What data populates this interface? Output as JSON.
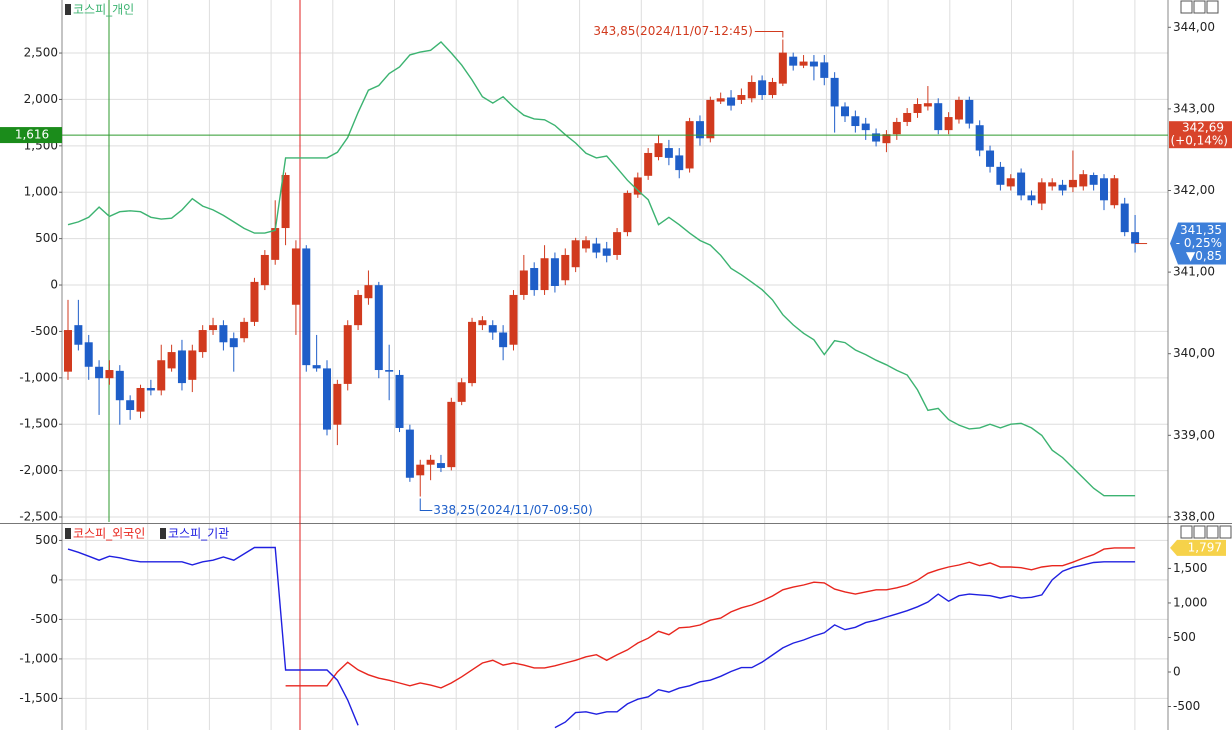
{
  "chart_data": [
    {
      "type": "candlestick",
      "series": [
        {
          "name": "코스피_개인",
          "color": "#3cb371",
          "values": [
            650,
            680,
            730,
            840,
            740,
            790,
            800,
            790,
            730,
            710,
            720,
            810,
            930,
            850,
            810,
            750,
            680,
            610,
            560,
            560,
            590,
            1370,
            1370,
            1370,
            1370,
            1370,
            1430,
            1590,
            1860,
            2100,
            2150,
            2280,
            2350,
            2480,
            2510,
            2530,
            2620,
            2500,
            2370,
            2210,
            2030,
            1960,
            2030,
            1920,
            1830,
            1790,
            1780,
            1720,
            1620,
            1530,
            1420,
            1370,
            1390,
            1260,
            1130,
            1020,
            920,
            650,
            730,
            650,
            560,
            480,
            430,
            320,
            180,
            110,
            30,
            -50,
            -160,
            -320,
            -430,
            -520,
            -590,
            -750,
            -600,
            -620,
            -700,
            -750,
            -810,
            -860,
            -920,
            -970,
            -1130,
            -1350,
            -1330,
            -1450,
            -1510,
            -1550,
            -1540,
            -1500,
            -1540,
            -1500,
            -1490,
            -1540,
            -1620,
            -1780,
            -1860,
            -1970,
            -2080,
            -2190,
            -2270,
            -2270,
            -2270,
            -2270
          ]
        }
      ],
      "candles": {
        "axis": "y2",
        "up_color": "#d13a1e",
        "down_color": "#1e5ec8",
        "open": [
          339.78,
          340.35,
          340.14,
          339.84,
          339.7,
          339.79,
          339.43,
          339.29,
          339.58,
          339.55,
          339.82,
          340.04,
          339.68,
          340.02,
          340.29,
          340.35,
          340.19,
          340.19,
          340.39,
          340.84,
          341.15,
          341.54,
          340.6,
          341.29,
          339.86,
          339.82,
          339.13,
          339.63,
          340.35,
          340.68,
          340.84,
          339.8,
          339.74,
          339.07,
          338.51,
          338.64,
          338.66,
          338.61,
          339.41,
          339.64,
          340.35,
          340.35,
          340.26,
          340.11,
          340.72,
          341.05,
          340.78,
          341.17,
          340.9,
          341.06,
          341.29,
          341.35,
          341.29,
          341.21,
          341.49,
          341.95,
          342.18,
          342.41,
          342.52,
          342.43,
          342.27,
          342.85,
          342.64,
          343.09,
          343.14,
          343.11,
          343.13,
          343.35,
          343.17,
          343.31,
          343.64,
          343.53,
          343.58,
          343.57,
          343.38,
          343.03,
          342.91,
          342.82,
          342.7,
          342.58,
          342.69,
          342.84,
          342.95,
          343.03,
          343.07,
          342.74,
          342.87,
          343.11,
          342.8,
          342.49,
          342.29,
          342.05,
          342.22,
          341.94,
          341.84,
          342.05,
          342.07,
          342.04,
          342.05,
          342.19,
          342.15,
          341.82,
          341.84,
          341.49
        ],
        "high": [
          340.66,
          340.66,
          340.23,
          339.92,
          339.92,
          339.86,
          339.49,
          339.62,
          339.68,
          340.11,
          340.11,
          340.17,
          340.11,
          340.35,
          340.44,
          340.41,
          340.26,
          340.44,
          340.93,
          341.27,
          341.88,
          342.22,
          341.39,
          341.33,
          340.23,
          339.92,
          339.68,
          340.41,
          340.78,
          341.02,
          340.88,
          340.11,
          339.8,
          339.13,
          338.7,
          338.76,
          338.76,
          339.46,
          339.7,
          340.44,
          340.46,
          340.41,
          340.35,
          340.78,
          341.21,
          341.12,
          341.33,
          341.24,
          341.29,
          341.42,
          341.44,
          341.42,
          341.37,
          341.54,
          342.0,
          342.22,
          342.52,
          342.68,
          342.62,
          342.52,
          342.89,
          342.92,
          343.15,
          343.2,
          343.23,
          343.25,
          343.41,
          343.41,
          343.38,
          343.85,
          343.69,
          343.66,
          343.66,
          343.66,
          343.45,
          343.08,
          342.98,
          342.89,
          342.76,
          342.74,
          342.89,
          343.01,
          343.13,
          343.28,
          343.13,
          342.96,
          343.15,
          343.15,
          342.86,
          342.55,
          342.35,
          342.2,
          342.27,
          342.0,
          342.15,
          342.15,
          342.13,
          342.49,
          342.25,
          342.22,
          342.2,
          342.19,
          341.91,
          341.7
        ],
        "low": [
          339.68,
          340.04,
          339.68,
          339.25,
          339.62,
          339.13,
          339.19,
          339.21,
          339.49,
          339.49,
          339.78,
          339.55,
          339.53,
          339.95,
          340.23,
          340.04,
          339.78,
          340.14,
          340.34,
          340.78,
          341.09,
          341.33,
          340.23,
          339.78,
          339.78,
          339.0,
          338.88,
          339.55,
          340.29,
          340.6,
          339.7,
          339.43,
          339.04,
          338.43,
          338.25,
          338.45,
          338.55,
          338.57,
          339.37,
          339.6,
          340.29,
          340.17,
          339.92,
          340.04,
          340.66,
          340.71,
          340.72,
          340.75,
          340.84,
          341.0,
          341.24,
          341.17,
          341.12,
          341.15,
          341.44,
          341.91,
          342.13,
          342.37,
          342.31,
          342.15,
          342.22,
          342.55,
          342.59,
          343.06,
          342.98,
          343.06,
          343.08,
          343.11,
          343.13,
          343.28,
          343.47,
          343.5,
          343.35,
          343.29,
          342.71,
          342.84,
          342.71,
          342.62,
          342.54,
          342.47,
          342.62,
          342.79,
          342.89,
          342.98,
          342.69,
          342.69,
          342.82,
          342.76,
          342.42,
          342.22,
          342.0,
          342.0,
          341.88,
          341.82,
          341.76,
          342.0,
          341.94,
          341.98,
          342.0,
          342.0,
          341.76,
          341.78,
          341.44,
          341.24
        ],
        "close": [
          340.29,
          340.11,
          339.84,
          339.7,
          339.8,
          339.43,
          339.31,
          339.58,
          339.55,
          339.92,
          340.02,
          339.64,
          340.04,
          340.29,
          340.35,
          340.14,
          340.08,
          340.39,
          340.88,
          341.21,
          341.54,
          342.19,
          341.29,
          339.86,
          339.82,
          339.07,
          339.63,
          340.35,
          340.72,
          340.84,
          339.8,
          339.78,
          339.09,
          338.48,
          338.64,
          338.7,
          338.6,
          339.41,
          339.65,
          340.39,
          340.41,
          340.26,
          340.08,
          340.72,
          341.02,
          340.78,
          341.17,
          340.83,
          341.21,
          341.39,
          341.39,
          341.24,
          341.2,
          341.49,
          341.97,
          342.16,
          342.46,
          342.58,
          342.4,
          342.25,
          342.85,
          342.64,
          343.11,
          343.13,
          343.04,
          343.17,
          343.33,
          343.17,
          343.33,
          343.69,
          343.53,
          343.58,
          343.52,
          343.38,
          343.03,
          342.91,
          342.79,
          342.74,
          342.6,
          342.69,
          342.84,
          342.95,
          343.06,
          343.07,
          342.74,
          342.9,
          343.11,
          342.82,
          342.49,
          342.29,
          342.07,
          342.15,
          341.94,
          341.88,
          342.1,
          342.1,
          342.0,
          342.13,
          342.2,
          342.07,
          341.88,
          342.15,
          341.49,
          341.35
        ]
      },
      "ylim": [
        -2543,
        3050
      ],
      "yticks": [
        {
          "value": 2500,
          "label": "2,500"
        },
        {
          "value": 2000,
          "label": "2,000"
        },
        {
          "value": 1500,
          "label": "1,500"
        },
        {
          "value": 1000,
          "label": "1,000"
        },
        500,
        0,
        -500,
        {
          "value": -1000,
          "label": "-1,000"
        },
        {
          "value": -1500,
          "label": "-1,500"
        },
        {
          "value": -2000,
          "label": "-2,000"
        },
        {
          "value": -2500,
          "label": "-2,500"
        }
      ],
      "y2lim": [
        337.95,
        344.31
      ],
      "y2ticks": [
        {
          "value": 344,
          "label": "344,00"
        },
        {
          "value": 343,
          "label": "343,00"
        },
        {
          "value": 342,
          "label": "342,00"
        },
        {
          "value": 341,
          "label": "341,00"
        },
        {
          "value": 340,
          "label": "340,00"
        },
        {
          "value": 339,
          "label": "339,00"
        },
        {
          "value": 338,
          "label": "338,00"
        }
      ],
      "grid": true,
      "high_label": "343,85(2024/11/07-12:45)",
      "low_label": "338,25(2024/11/07-09:50)",
      "crosshair": {
        "y": {
          "value": 1616,
          "label": "1,616"
        },
        "y2": {
          "value": 342.69,
          "label": "342,69"
        },
        "change": "(+0,14%)"
      },
      "last_price": {
        "value": 341.35,
        "label": "341,35",
        "change": "- 0,25%",
        "diff": "▼0,85"
      }
    },
    {
      "type": "line",
      "series": [
        {
          "name": "코스피_외국인",
          "color": "#e8261e",
          "axis": "y2",
          "value_label": "1,797",
          "values": [
            null,
            null,
            null,
            null,
            null,
            null,
            null,
            null,
            null,
            null,
            null,
            null,
            null,
            null,
            null,
            null,
            null,
            null,
            null,
            null,
            null,
            -200,
            -200,
            -200,
            -200,
            -200,
            0,
            140,
            30,
            -40,
            -90,
            -120,
            -160,
            -200,
            -160,
            -190,
            -230,
            -160,
            -70,
            30,
            130,
            170,
            100,
            130,
            100,
            60,
            60,
            90,
            130,
            170,
            220,
            250,
            170,
            250,
            320,
            420,
            490,
            590,
            540,
            640,
            650,
            680,
            750,
            780,
            870,
            930,
            970,
            1030,
            1100,
            1190,
            1230,
            1260,
            1300,
            1290,
            1200,
            1160,
            1130,
            1160,
            1190,
            1190,
            1220,
            1260,
            1330,
            1430,
            1480,
            1520,
            1550,
            1590,
            1540,
            1580,
            1520,
            1520,
            1510,
            1480,
            1520,
            1540,
            1540,
            1590,
            1650,
            1700,
            1780,
            1797,
            1797,
            1797
          ]
        },
        {
          "name": "코스피_기관",
          "color": "#2020e0",
          "values": [
            390,
            350,
            300,
            250,
            300,
            280,
            250,
            230,
            230,
            230,
            230,
            230,
            190,
            230,
            250,
            290,
            250,
            330,
            410,
            410,
            410,
            -1140,
            -1140,
            -1140,
            -1140,
            -1140,
            -1270,
            -1520,
            -1840,
            null,
            null,
            null,
            null,
            null,
            null,
            null,
            null,
            null,
            null,
            null,
            null,
            null,
            null,
            null,
            null,
            null,
            null,
            -1870,
            -1800,
            -1680,
            -1670,
            -1700,
            -1670,
            -1670,
            -1570,
            -1510,
            -1480,
            -1390,
            -1420,
            -1370,
            -1340,
            -1290,
            -1270,
            -1220,
            -1160,
            -1110,
            -1110,
            -1040,
            -950,
            -860,
            -800,
            -760,
            -710,
            -670,
            -570,
            -630,
            -600,
            -540,
            -510,
            -470,
            -430,
            -390,
            -340,
            -280,
            -180,
            -270,
            -200,
            -180,
            -190,
            -200,
            -230,
            -200,
            -230,
            -220,
            -190,
            0,
            110,
            160,
            190,
            220,
            230,
            230,
            230,
            230
          ]
        }
      ],
      "ylim": [
        -1900,
        670
      ],
      "yticks": [
        500,
        0,
        -500,
        {
          "value": -1000,
          "label": "-1,000"
        },
        {
          "value": -1500,
          "label": "-1,500"
        }
      ],
      "y2lim": [
        -840,
        2100
      ],
      "y2ticks": [
        {
          "value": 1500,
          "label": "1,500"
        },
        {
          "value": 1000,
          "label": "1,000"
        },
        500,
        0,
        -500
      ],
      "grid": true
    }
  ]
}
